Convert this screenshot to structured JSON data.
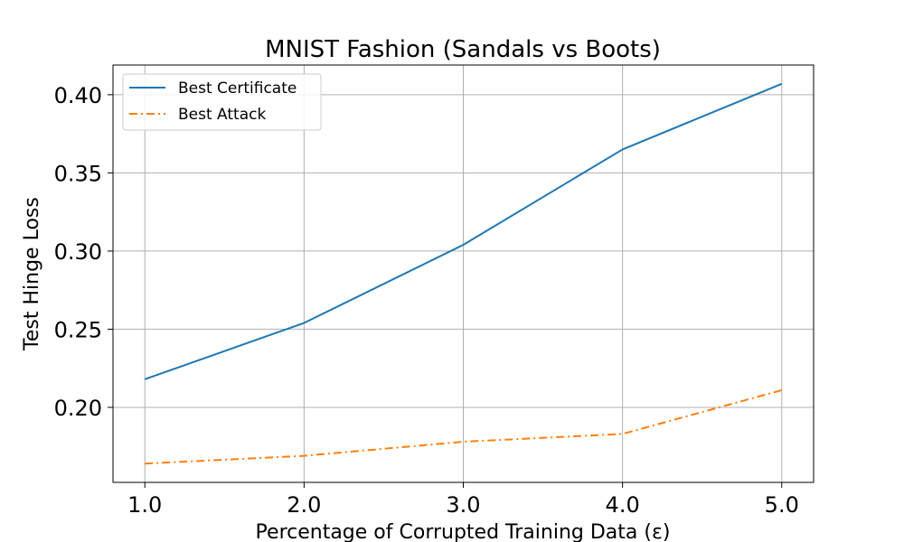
{
  "chart_data": {
    "type": "line",
    "title": "MNIST Fashion (Sandals vs Boots)",
    "xlabel": "Percentage of Corrupted Training Data (ε)",
    "ylabel": "Test Hinge Loss",
    "x": [
      1.0,
      2.0,
      3.0,
      4.0,
      5.0
    ],
    "x_ticks": [
      "1.0",
      "2.0",
      "3.0",
      "4.0",
      "5.0"
    ],
    "y_ticks": [
      "0.20",
      "0.25",
      "0.30",
      "0.35",
      "0.40"
    ],
    "xlim": [
      0.8,
      5.2
    ],
    "ylim": [
      0.152,
      0.419
    ],
    "grid": true,
    "legend_position": "top-left",
    "series": [
      {
        "name": "Best Certificate",
        "color": "#1f77b4",
        "style": "solid",
        "values": [
          0.218,
          0.254,
          0.304,
          0.365,
          0.407
        ]
      },
      {
        "name": "Best Attack",
        "color": "#ff7f0e",
        "style": "dashdot",
        "values": [
          0.164,
          0.169,
          0.178,
          0.183,
          0.211
        ]
      }
    ]
  }
}
